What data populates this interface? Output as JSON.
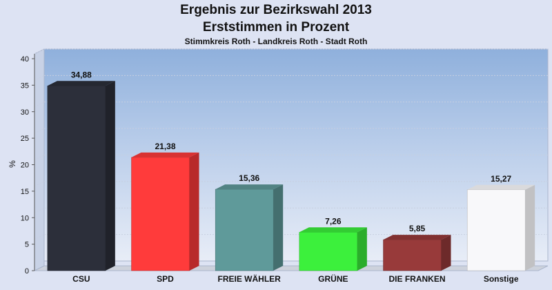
{
  "header": {
    "title": "Ergebnis zur Bezirkswahl 2013",
    "subtitle": "Erststimmen in Prozent",
    "subsubtitle": "Stimmkreis Roth - Landkreis Roth - Stadt Roth"
  },
  "chart_data": {
    "type": "bar",
    "title": "Ergebnis zur Bezirkswahl 2013",
    "subtitle": "Erststimmen in Prozent",
    "xlabel": "",
    "ylabel": "%",
    "ylim": [
      0,
      40
    ],
    "yticks": [
      0,
      5,
      10,
      15,
      20,
      25,
      30,
      35,
      40
    ],
    "grid": true,
    "legend": "none",
    "categories": [
      "CSU",
      "SPD",
      "FREIE WÄHLER",
      "GRÜNE",
      "DIE FRANKEN",
      "Sonstige"
    ],
    "values": [
      34.88,
      21.38,
      15.36,
      7.26,
      5.85,
      15.27
    ],
    "value_labels": [
      "34,88",
      "21,38",
      "15,36",
      "7,26",
      "5,85",
      "15,27"
    ],
    "colors": [
      "#2c2f3a",
      "#ff3b3b",
      "#5f9a9a",
      "#3cf03c",
      "#983a3a",
      "#f8f8fa"
    ]
  }
}
